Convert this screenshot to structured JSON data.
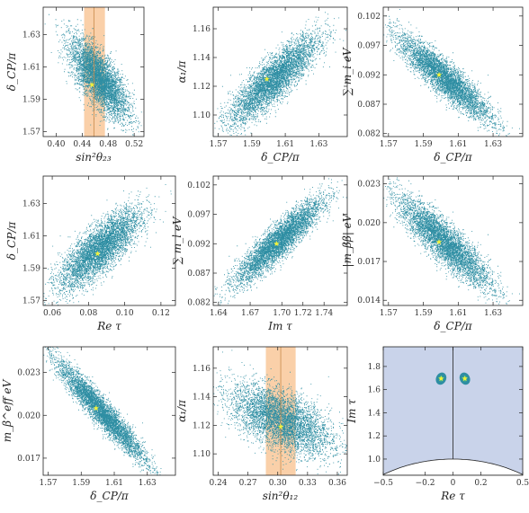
{
  "colors": {
    "scatter": "#2e8ea3",
    "star": "#f2f23a",
    "band": "#f9c89a",
    "band_line": "#c88a4a",
    "fundamental_domain": "#c9d3ea",
    "frame": "#222222"
  },
  "chart_data": [
    {
      "type": "scatter",
      "id": "p1",
      "xlabel": "sin²θ₂₃",
      "ylabel": "δ_CP/π",
      "xlim": [
        0.38,
        0.535
      ],
      "ylim": [
        1.567,
        1.647
      ],
      "xticks": [
        0.4,
        0.44,
        0.48,
        0.52
      ],
      "xtick_labels": [
        "0.40",
        "0.44",
        "0.48",
        "0.52"
      ],
      "yticks": [
        1.57,
        1.59,
        1.61,
        1.63
      ],
      "ytick_labels": [
        "1.57",
        "1.59",
        "1.61",
        "1.63"
      ],
      "cloud": {
        "center": [
          0.465,
          1.603
        ],
        "spread": [
          0.022,
          0.012
        ],
        "corr": -0.72
      },
      "best_fit": [
        0.455,
        1.599
      ],
      "band": {
        "x": [
          0.443,
          0.475
        ],
        "center": 0.458
      }
    },
    {
      "type": "scatter",
      "id": "p2",
      "xlabel": "δ_CP/π",
      "ylabel": "α₁/π",
      "xlim": [
        1.567,
        1.647
      ],
      "ylim": [
        1.085,
        1.175
      ],
      "xticks": [
        1.57,
        1.59,
        1.61,
        1.63
      ],
      "xtick_labels": [
        "1.57",
        "1.59",
        "1.61",
        "1.63"
      ],
      "yticks": [
        1.1,
        1.12,
        1.14,
        1.16
      ],
      "ytick_labels": [
        "1.10",
        "1.12",
        "1.14",
        "1.16"
      ],
      "cloud": {
        "center": [
          1.603,
          1.125
        ],
        "spread": [
          0.013,
          0.015
        ],
        "corr": 0.85
      },
      "best_fit": [
        1.599,
        1.125
      ]
    },
    {
      "type": "scatter",
      "id": "p3",
      "xlabel": "δ_CP/π",
      "ylabel": "∑ m_i eV",
      "xlim": [
        1.567,
        1.647
      ],
      "ylim": [
        0.0815,
        0.1035
      ],
      "xticks": [
        1.57,
        1.59,
        1.61,
        1.63
      ],
      "xtick_labels": [
        "1.57",
        "1.59",
        "1.61",
        "1.63"
      ],
      "yticks": [
        0.082,
        0.087,
        0.092,
        0.097,
        0.102
      ],
      "ytick_labels": [
        "0.082",
        "0.087",
        "0.092",
        "0.097",
        "0.102"
      ],
      "cloud": {
        "center": [
          1.602,
          0.0915
        ],
        "spread": [
          0.013,
          0.0035
        ],
        "corr": -0.9
      },
      "best_fit": [
        1.599,
        0.092
      ]
    },
    {
      "type": "scatter",
      "id": "p4",
      "xlabel": "Re τ",
      "ylabel": "δ_CP/π",
      "xlim": [
        0.055,
        0.128
      ],
      "ylim": [
        1.567,
        1.647
      ],
      "xticks": [
        0.06,
        0.08,
        0.1,
        0.12
      ],
      "xtick_labels": [
        "0.06",
        "0.08",
        "0.10",
        "0.12"
      ],
      "yticks": [
        1.57,
        1.59,
        1.61,
        1.63
      ],
      "ytick_labels": [
        "1.57",
        "1.59",
        "1.61",
        "1.63"
      ],
      "cloud": {
        "center": [
          0.086,
          1.602
        ],
        "spread": [
          0.011,
          0.012
        ],
        "corr": 0.78
      },
      "best_fit": [
        0.085,
        1.599
      ]
    },
    {
      "type": "scatter",
      "id": "p5",
      "xlabel": "Im τ",
      "ylabel": "∑ m_i eV",
      "xlim": [
        1.635,
        1.762
      ],
      "ylim": [
        0.0815,
        0.1035
      ],
      "xticks": [
        1.64,
        1.67,
        1.7,
        1.72,
        1.74
      ],
      "xtick_labels": [
        "1.64",
        "1.67",
        "1.70",
        "1.72",
        "1.74"
      ],
      "yticks": [
        0.082,
        0.087,
        0.092,
        0.097,
        0.102
      ],
      "ytick_labels": [
        "0.082",
        "0.087",
        "0.092",
        "0.097",
        "0.102"
      ],
      "cloud": {
        "center": [
          1.697,
          0.0925
        ],
        "spread": [
          0.02,
          0.0035
        ],
        "corr": 0.9
      },
      "best_fit": [
        1.695,
        0.092
      ]
    },
    {
      "type": "scatter",
      "id": "p6",
      "xlabel": "δ_CP/π",
      "ylabel": "|m_ββ| eV",
      "xlim": [
        1.567,
        1.647
      ],
      "ylim": [
        0.0136,
        0.0236
      ],
      "xticks": [
        1.57,
        1.59,
        1.61,
        1.63
      ],
      "xtick_labels": [
        "1.57",
        "1.59",
        "1.61",
        "1.63"
      ],
      "yticks": [
        0.014,
        0.017,
        0.02,
        0.023
      ],
      "ytick_labels": [
        "0.014",
        "0.017",
        "0.020",
        "0.023"
      ],
      "cloud": {
        "center": [
          1.602,
          0.0185
        ],
        "spread": [
          0.013,
          0.0017
        ],
        "corr": -0.88
      },
      "best_fit": [
        1.599,
        0.0185
      ]
    },
    {
      "type": "scatter",
      "id": "p7",
      "xlabel": "δ_CP/π",
      "ylabel": "m_β^eff eV",
      "xlim": [
        1.567,
        1.647
      ],
      "ylim": [
        0.0158,
        0.0248
      ],
      "xticks": [
        1.57,
        1.59,
        1.61,
        1.63
      ],
      "xtick_labels": [
        "1.57",
        "1.59",
        "1.61",
        "1.63"
      ],
      "yticks": [
        0.017,
        0.02,
        0.023
      ],
      "ytick_labels": [
        "0.017",
        "0.020",
        "0.023"
      ],
      "cloud": {
        "center": [
          1.602,
          0.0203
        ],
        "spread": [
          0.013,
          0.0017
        ],
        "corr": -0.95
      },
      "best_fit": [
        1.599,
        0.0205
      ]
    },
    {
      "type": "scatter",
      "id": "p8",
      "xlabel": "sin²θ₁₂",
      "ylabel": "α₁/π",
      "xlim": [
        0.235,
        0.37
      ],
      "ylim": [
        1.085,
        1.175
      ],
      "xticks": [
        0.24,
        0.27,
        0.3,
        0.33,
        0.36
      ],
      "xtick_labels": [
        "0.24",
        "0.27",
        "0.30",
        "0.33",
        "0.36"
      ],
      "yticks": [
        1.1,
        1.12,
        1.14,
        1.16
      ],
      "ytick_labels": [
        "1.10",
        "1.12",
        "1.14",
        "1.16"
      ],
      "cloud": {
        "center": [
          0.303,
          1.124
        ],
        "spread": [
          0.025,
          0.012
        ],
        "corr": -0.55
      },
      "best_fit": [
        0.303,
        1.119
      ],
      "band": {
        "x": [
          0.288,
          0.318
        ],
        "center": 0.303
      }
    },
    {
      "type": "scatter",
      "id": "p9",
      "xlabel": "Re τ",
      "ylabel": "Im τ",
      "xlim": [
        -0.5,
        0.5
      ],
      "ylim": [
        0.86,
        1.97
      ],
      "xticks": [
        -0.5,
        -0.2,
        0,
        0.2,
        0.5
      ],
      "xtick_labels": [
        "−0.5",
        "−0.2",
        "0",
        "0.2",
        "0.5"
      ],
      "yticks": [
        1.0,
        1.2,
        1.4,
        1.6,
        1.8
      ],
      "ytick_labels": [
        "1.0",
        "1.2",
        "1.4",
        "1.6",
        "1.8"
      ],
      "clusters": [
        {
          "center": [
            -0.085,
            1.695
          ]
        },
        {
          "center": [
            0.085,
            1.695
          ]
        }
      ],
      "best_fit": [
        [
          -0.085,
          1.695
        ],
        [
          0.085,
          1.695
        ]
      ]
    }
  ]
}
